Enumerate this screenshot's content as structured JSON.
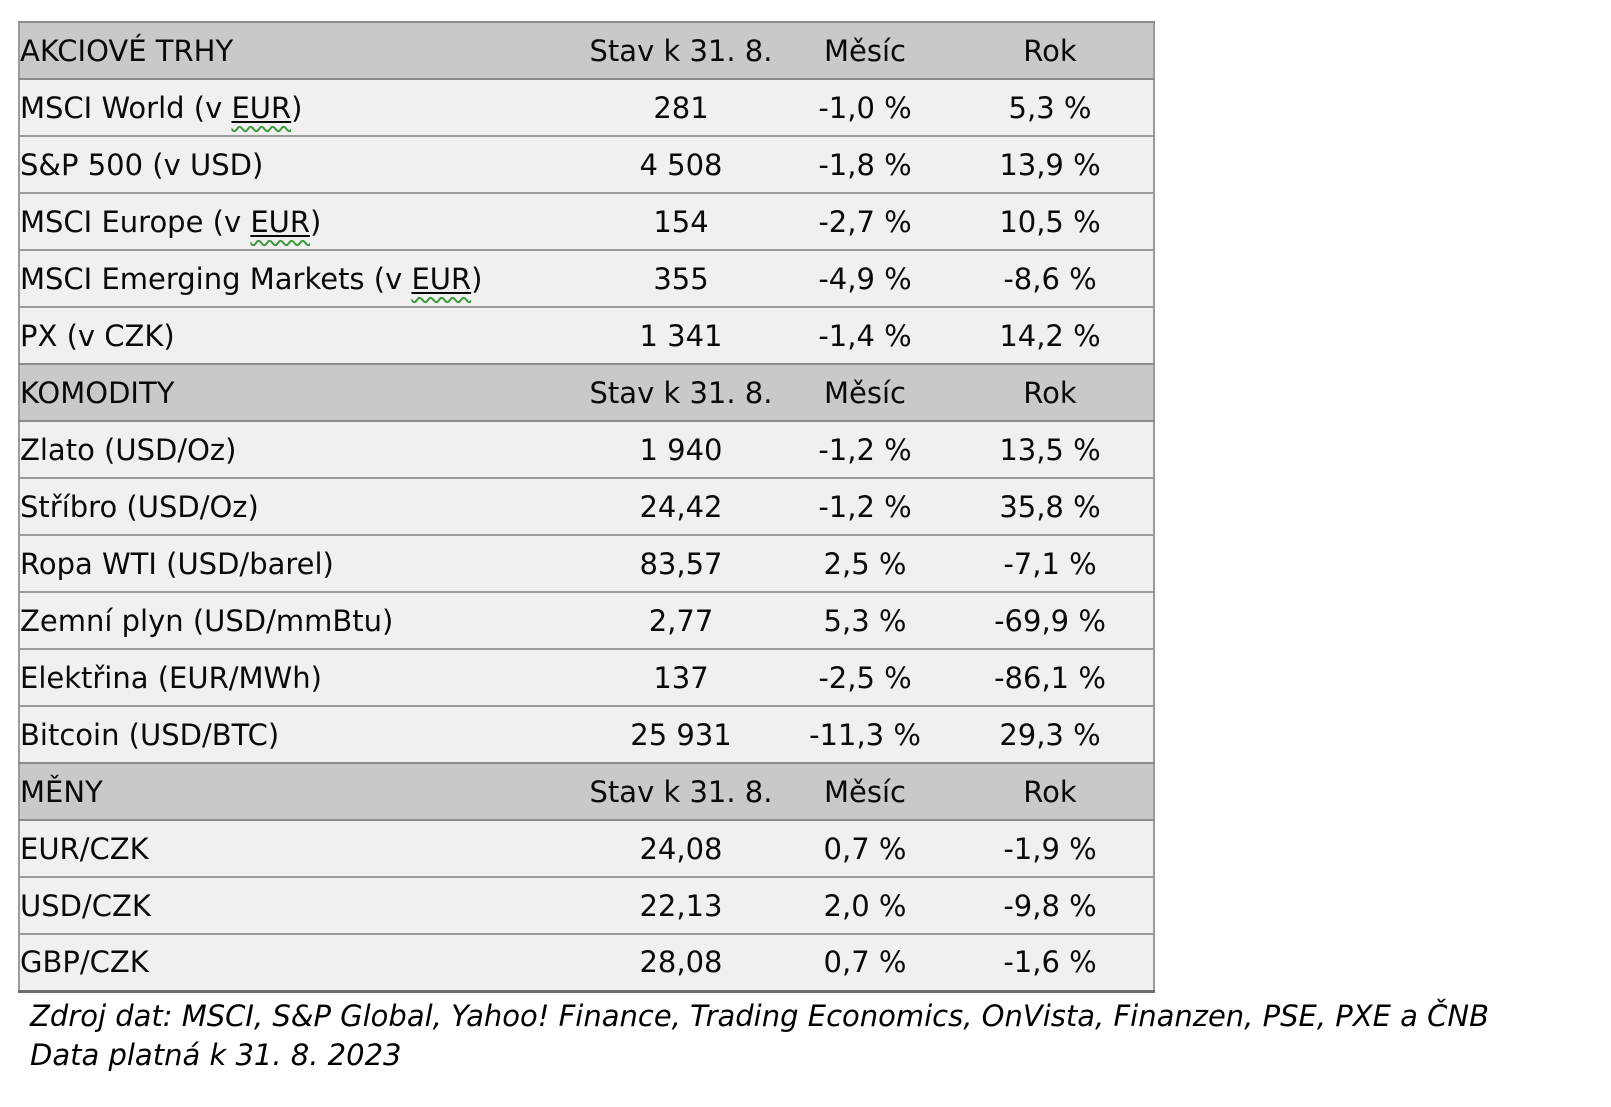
{
  "table": {
    "value_header": "Stav k 31. 8.",
    "month_header": "Měsíc",
    "year_header": "Rok",
    "sections": [
      {
        "title": "AKCIOVÉ TRHY",
        "rows": [
          {
            "prefix": "MSCI World (v ",
            "marked": "EUR",
            "suffix": ")",
            "value": "281",
            "month": "-1,0 %",
            "year": "5,3 %"
          },
          {
            "prefix": "S&P 500 (v USD)",
            "marked": "",
            "suffix": "",
            "value": "4 508",
            "month": "-1,8 %",
            "year": "13,9 %"
          },
          {
            "prefix": "MSCI Europe (v ",
            "marked": "EUR",
            "suffix": ")",
            "value": "154",
            "month": "-2,7 %",
            "year": "10,5 %"
          },
          {
            "prefix": "MSCI Emerging Markets (v ",
            "marked": "EUR",
            "suffix": ")",
            "value": "355",
            "month": "-4,9 %",
            "year": "-8,6 %"
          },
          {
            "prefix": "PX (v CZK)",
            "marked": "",
            "suffix": "",
            "value": "1 341",
            "month": "-1,4 %",
            "year": "14,2 %"
          }
        ]
      },
      {
        "title": "KOMODITY",
        "rows": [
          {
            "prefix": "Zlato (USD/Oz)",
            "marked": "",
            "suffix": "",
            "value": "1 940",
            "month": "-1,2 %",
            "year": "13,5 %"
          },
          {
            "prefix": "Stříbro (USD/Oz)",
            "marked": "",
            "suffix": "",
            "value": "24,42",
            "month": "-1,2 %",
            "year": "35,8 %"
          },
          {
            "prefix": "Ropa WTI (USD/barel)",
            "marked": "",
            "suffix": "",
            "value": "83,57",
            "month": "2,5 %",
            "year": "-7,1 %"
          },
          {
            "prefix": "Zemní plyn (USD/mmBtu)",
            "marked": "",
            "suffix": "",
            "value": "2,77",
            "month": "5,3 %",
            "year": "-69,9 %"
          },
          {
            "prefix": "Elektřina (EUR/MWh)",
            "marked": "",
            "suffix": "",
            "value": "137",
            "month": "-2,5 %",
            "year": "-86,1 %"
          },
          {
            "prefix": "Bitcoin (USD/BTC)",
            "marked": "",
            "suffix": "",
            "value": "25 931",
            "month": "-11,3 %",
            "year": "29,3 %"
          }
        ]
      },
      {
        "title": "MĚNY",
        "rows": [
          {
            "prefix": "EUR/CZK",
            "marked": "",
            "suffix": "",
            "value": "24,08",
            "month": "0,7 %",
            "year": "-1,9 %"
          },
          {
            "prefix": "USD/CZK",
            "marked": "",
            "suffix": "",
            "value": "22,13",
            "month": "2,0 %",
            "year": "-9,8 %"
          },
          {
            "prefix": "GBP/CZK",
            "marked": "",
            "suffix": "",
            "value": "28,08",
            "month": "0,7 %",
            "year": "-1,6 %"
          }
        ]
      }
    ]
  },
  "footer": {
    "source_line": "Zdroj dat: MSCI, S&P Global, Yahoo! Finance, Trading Economics, OnVista, Finanzen, PSE, PXE a ČNB",
    "validity_line": "Data platná k 31. 8. 2023"
  },
  "colors": {
    "section_header_bg": "#c9c9c9",
    "row_bg": "#f0f0f0",
    "row_border": "#9b9b9b",
    "spellcheck_underline": "#3d9b3d"
  }
}
